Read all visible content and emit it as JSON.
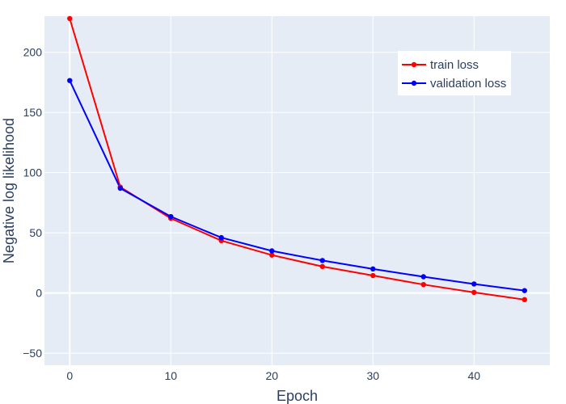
{
  "chart_data": {
    "type": "line",
    "title": "",
    "xlabel": "Epoch",
    "ylabel": "Negative log likelihood",
    "xlim": [
      -2.5,
      47.5
    ],
    "ylim": [
      -60,
      230
    ],
    "xticks": [
      0,
      10,
      20,
      30,
      40
    ],
    "yticks": [
      -50,
      0,
      50,
      100,
      150,
      200
    ],
    "x": [
      0,
      5,
      10,
      15,
      20,
      25,
      30,
      35,
      40,
      45
    ],
    "series": [
      {
        "name": "train loss",
        "color": "#ff0000",
        "values": [
          228,
          88,
          62,
          43.5,
          31.5,
          22,
          14.5,
          7,
          0.5,
          -5.5
        ]
      },
      {
        "name": "validation loss",
        "color": "#0000ff",
        "values": [
          176.5,
          87,
          63.5,
          46,
          35,
          27,
          20,
          13.5,
          7.5,
          2
        ]
      }
    ],
    "grid": true,
    "legend_position": "top-right",
    "plot_background": "#e5ecf6"
  }
}
